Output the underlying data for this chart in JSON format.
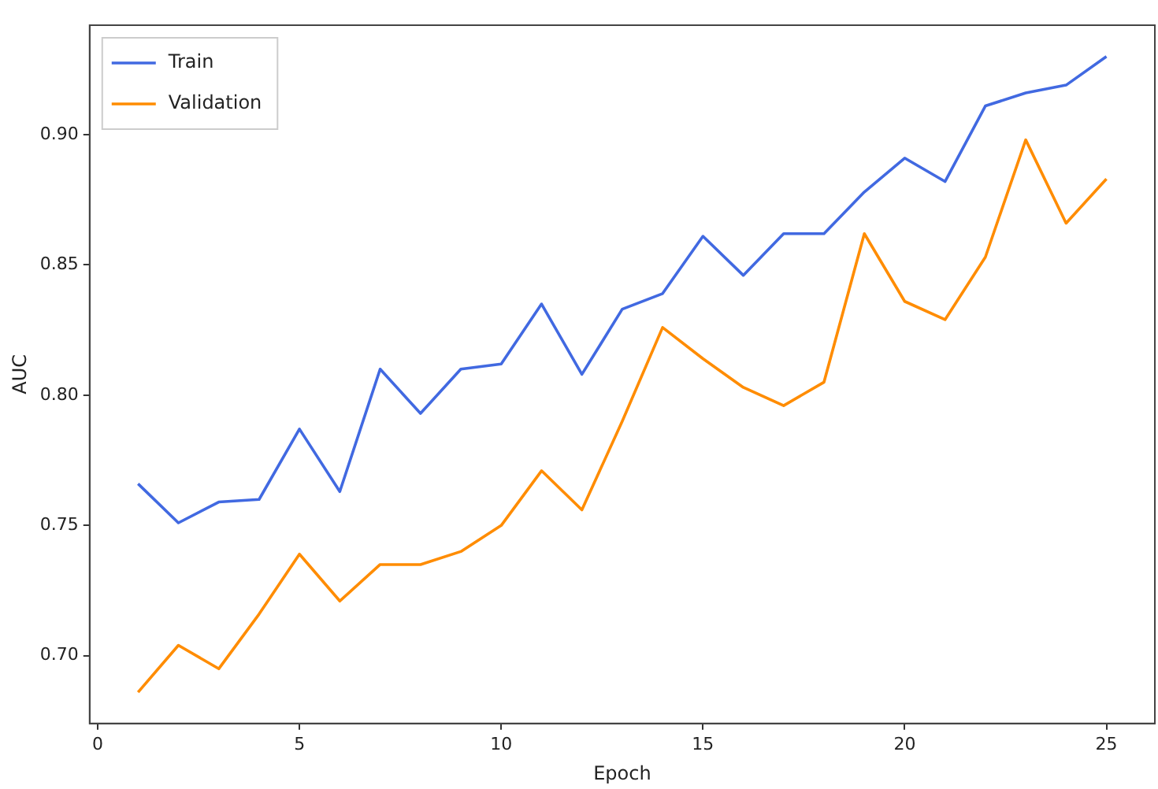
{
  "chart_data": {
    "type": "line",
    "xlabel": "Epoch",
    "ylabel": "AUC",
    "x": [
      1,
      2,
      3,
      4,
      5,
      6,
      7,
      8,
      9,
      10,
      11,
      12,
      13,
      14,
      15,
      16,
      17,
      18,
      19,
      20,
      21,
      22,
      23,
      24,
      25
    ],
    "series": [
      {
        "name": "Train",
        "color": "#4169e1",
        "values": [
          0.766,
          0.751,
          0.759,
          0.76,
          0.787,
          0.763,
          0.81,
          0.793,
          0.81,
          0.812,
          0.835,
          0.808,
          0.833,
          0.839,
          0.861,
          0.846,
          0.862,
          0.862,
          0.878,
          0.891,
          0.882,
          0.911,
          0.916,
          0.919,
          0.93
        ]
      },
      {
        "name": "Validation",
        "color": "#ff8c00",
        "values": [
          0.686,
          0.704,
          0.695,
          0.716,
          0.739,
          0.721,
          0.735,
          0.735,
          0.74,
          0.75,
          0.771,
          0.756,
          0.79,
          0.826,
          0.814,
          0.803,
          0.796,
          0.805,
          0.862,
          0.836,
          0.829,
          0.853,
          0.898,
          0.866,
          0.883
        ]
      }
    ],
    "xlim": [
      -0.2,
      26.2
    ],
    "xticks": [
      0,
      5,
      10,
      15,
      20,
      25
    ],
    "ylim": [
      0.674,
      0.942
    ],
    "yticks": [
      {
        "value": 0.7,
        "label": "0.70"
      },
      0.75,
      {
        "value": 0.8,
        "label": "0.80"
      },
      0.85,
      {
        "value": 0.9,
        "label": "0.90"
      }
    ],
    "grid": false,
    "legend": "top left",
    "marker": "none",
    "line_style": "solid"
  }
}
